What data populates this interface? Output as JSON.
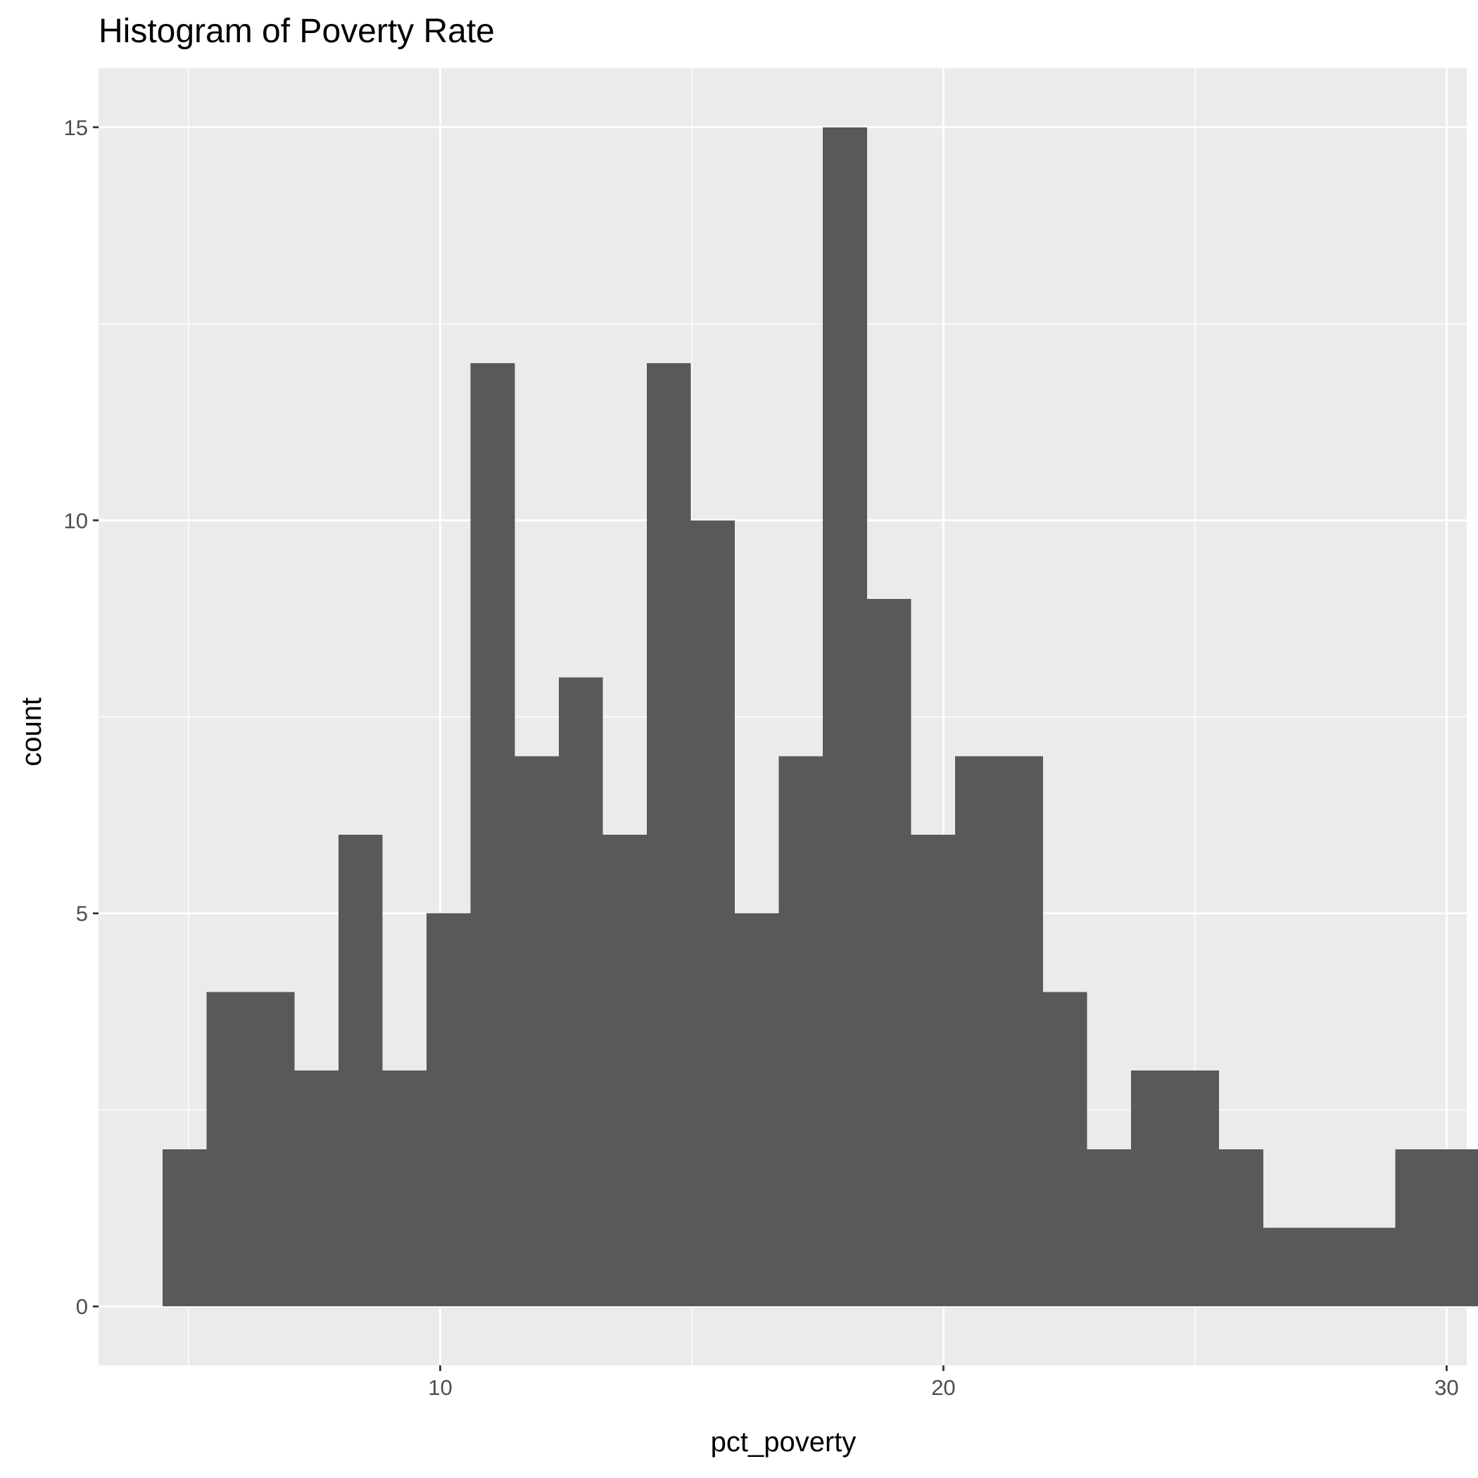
{
  "chart_data": {
    "type": "bar",
    "title": "Histogram of Poverty Rate",
    "xlabel": "pct_poverty",
    "ylabel": "count",
    "xlim": [
      3.21,
      30.4
    ],
    "ylim": [
      -0.75,
      15.75
    ],
    "x_ticks": [
      10,
      20,
      30
    ],
    "y_ticks": [
      0,
      5,
      10,
      15
    ],
    "grid": true,
    "bin_width": 0.875,
    "bins": [
      {
        "x0": 4.48,
        "x1": 5.355,
        "count": 2
      },
      {
        "x0": 5.355,
        "x1": 6.23,
        "count": 4
      },
      {
        "x0": 6.23,
        "x1": 7.105,
        "count": 4
      },
      {
        "x0": 7.105,
        "x1": 7.98,
        "count": 3
      },
      {
        "x0": 7.98,
        "x1": 8.855,
        "count": 6
      },
      {
        "x0": 8.855,
        "x1": 9.73,
        "count": 3
      },
      {
        "x0": 9.73,
        "x1": 10.605,
        "count": 5
      },
      {
        "x0": 10.605,
        "x1": 11.48,
        "count": 12
      },
      {
        "x0": 11.48,
        "x1": 12.355,
        "count": 7
      },
      {
        "x0": 12.355,
        "x1": 13.23,
        "count": 8
      },
      {
        "x0": 13.23,
        "x1": 14.105,
        "count": 6
      },
      {
        "x0": 14.105,
        "x1": 14.98,
        "count": 12
      },
      {
        "x0": 14.98,
        "x1": 15.855,
        "count": 10
      },
      {
        "x0": 15.855,
        "x1": 16.73,
        "count": 5
      },
      {
        "x0": 16.73,
        "x1": 17.605,
        "count": 7
      },
      {
        "x0": 17.605,
        "x1": 18.48,
        "count": 15
      },
      {
        "x0": 18.48,
        "x1": 19.355,
        "count": 9
      },
      {
        "x0": 19.355,
        "x1": 20.23,
        "count": 6
      },
      {
        "x0": 20.23,
        "x1": 21.105,
        "count": 7
      },
      {
        "x0": 21.105,
        "x1": 21.98,
        "count": 7
      },
      {
        "x0": 21.98,
        "x1": 22.855,
        "count": 4
      },
      {
        "x0": 22.855,
        "x1": 23.73,
        "count": 2
      },
      {
        "x0": 23.73,
        "x1": 24.605,
        "count": 3
      },
      {
        "x0": 24.605,
        "x1": 25.48,
        "count": 3
      },
      {
        "x0": 25.48,
        "x1": 26.355,
        "count": 2
      },
      {
        "x0": 26.355,
        "x1": 27.23,
        "count": 1
      },
      {
        "x0": 27.23,
        "x1": 28.105,
        "count": 1
      },
      {
        "x0": 28.105,
        "x1": 28.98,
        "count": 1
      },
      {
        "x0": 28.98,
        "x1": 29.855,
        "count": 2
      },
      {
        "x0": 29.855,
        "x1": 30.73,
        "count": 2
      }
    ],
    "colors": {
      "panel": "#ebebeb",
      "grid": "#ffffff",
      "bar": "#595959",
      "tick_text": "#4d4d4d",
      "tick_mark": "#333333"
    }
  }
}
